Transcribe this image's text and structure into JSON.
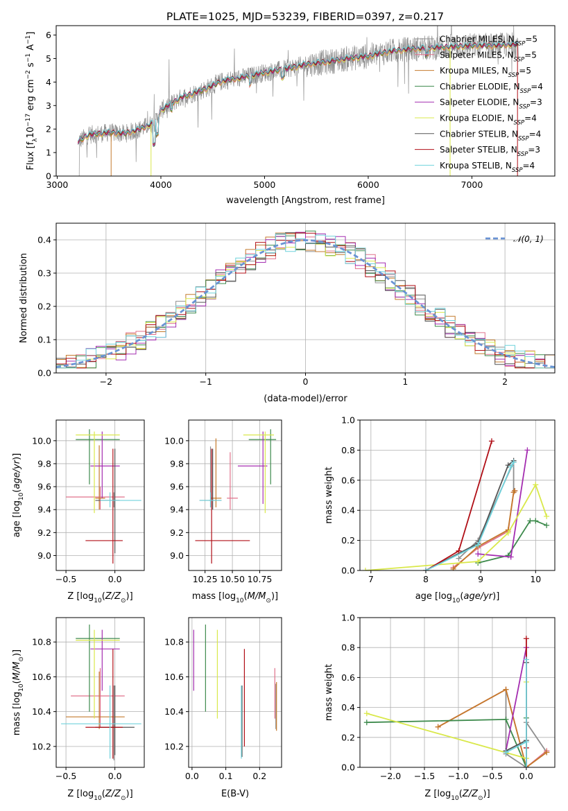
{
  "title": "PLATE=1025, MJD=53239, FIBERID=0397, z=0.217",
  "colors": {
    "Chabrier MILES": "#8f8f8f",
    "Salpeter MILES": "#e0708a",
    "Kroupa MILES": "#c47a2c",
    "Chabrier ELODIE": "#3d8a4c",
    "Salpeter ELODIE": "#a42db0",
    "Kroupa ELODIE": "#d9e84a",
    "Chabrier STELIB": "#555555",
    "Salpeter STELIB": "#b00e16",
    "Kroupa STELIB": "#6fd2dc",
    "gauss": "#6a93d4"
  },
  "legend_labels": [
    {
      "key": "Chabrier MILES",
      "name": "Chabrier MILES, N",
      "nssp": "5"
    },
    {
      "key": "Salpeter MILES",
      "name": "Salpeter MILES, N",
      "nssp": "5"
    },
    {
      "key": "Kroupa MILES",
      "name": "Kroupa MILES, N",
      "nssp": "5"
    },
    {
      "key": "Chabrier ELODIE",
      "name": "Chabrier ELODIE, N",
      "nssp": "4"
    },
    {
      "key": "Salpeter ELODIE",
      "name": "Salpeter ELODIE, N",
      "nssp": "3"
    },
    {
      "key": "Kroupa ELODIE",
      "name": "Kroupa ELODIE, N",
      "nssp": "4"
    },
    {
      "key": "Chabrier STELIB",
      "name": "Chabrier STELIB, N",
      "nssp": "4"
    },
    {
      "key": "Salpeter STELIB",
      "name": "Salpeter STELIB, N",
      "nssp": "3"
    },
    {
      "key": "Kroupa STELIB",
      "name": "Kroupa STELIB, N",
      "nssp": "4"
    }
  ],
  "nssp_subscript": "SSP",
  "chart_data": [
    {
      "id": "spectrum",
      "type": "line",
      "xlabel": "wavelength [Angstrom, rest frame]",
      "ylabel": "Flux [f_λ 10^-17 erg cm^-2 s^-1 A^-1]",
      "xlim": [
        2990,
        7800
      ],
      "ylim": [
        0,
        6.4
      ],
      "xticks": [
        3000,
        4000,
        5000,
        6000,
        7000
      ],
      "yticks": [
        0,
        1,
        2,
        3,
        4,
        5,
        6
      ],
      "continuum_x": [
        3200,
        3300,
        3500,
        3650,
        3800,
        3950,
        4000,
        4200,
        4400,
        4600,
        4800,
        5000,
        5200,
        5400,
        5600,
        5800,
        6000,
        6200,
        6400,
        6600,
        6800,
        7000,
        7200,
        7450
      ],
      "continuum_y": [
        1.45,
        1.75,
        1.85,
        1.8,
        2.0,
        2.3,
        2.8,
        3.35,
        3.65,
        4.05,
        4.2,
        4.4,
        4.55,
        4.75,
        4.85,
        5.0,
        5.1,
        5.3,
        5.4,
        5.45,
        5.5,
        5.55,
        5.55,
        5.6
      ],
      "data_xrange": [
        3200,
        7450
      ]
    },
    {
      "id": "residual_hist",
      "type": "bar",
      "xlabel": "(data-model)/error",
      "ylabel": "Normed distribution",
      "xlim": [
        -2.5,
        2.5
      ],
      "ylim": [
        0,
        0.45
      ],
      "xticks": [
        -2,
        -1,
        0,
        1,
        2
      ],
      "yticks": [
        0.0,
        0.1,
        0.2,
        0.3,
        0.4
      ],
      "bin_width": 0.1,
      "legend": "𝒩(0, 1)",
      "series_values": [
        0.03,
        0.035,
        0.04,
        0.045,
        0.055,
        0.065,
        0.07,
        0.075,
        0.08,
        0.09,
        0.1,
        0.11,
        0.12,
        0.14,
        0.15,
        0.17,
        0.19,
        0.2,
        0.22,
        0.23,
        0.24,
        0.25,
        0.26,
        0.27,
        0.28,
        0.29,
        0.3,
        0.31,
        0.32,
        0.33,
        0.34,
        0.35,
        0.36,
        0.37,
        0.37,
        0.38,
        0.39,
        0.39,
        0.4,
        0.4,
        0.4,
        0.4,
        0.4,
        0.39,
        0.39,
        0.38,
        0.37,
        0.36,
        0.35,
        0.34,
        0.33,
        0.32,
        0.31,
        0.29,
        0.28,
        0.27,
        0.25,
        0.24,
        0.22,
        0.21,
        0.2,
        0.18,
        0.17,
        0.16,
        0.15,
        0.13,
        0.12,
        0.11,
        0.1,
        0.09,
        0.08,
        0.07,
        0.06,
        0.055,
        0.05,
        0.045,
        0.04,
        0.035,
        0.03,
        0.03,
        0.03,
        0.03,
        0.03,
        0.03,
        0.03,
        0.03,
        0.03,
        0.03,
        0.03,
        0.03
      ]
    },
    {
      "id": "age_vs_Z",
      "type": "scatter",
      "xlabel": "Z [log10(Z/Z⊙)]",
      "ylabel": "age  [log10(age/yr)]",
      "xlim": [
        -0.6,
        0.3
      ],
      "ylim": [
        8.87,
        10.18
      ],
      "xticks": [
        -0.5,
        0.0
      ],
      "yticks": [
        9.0,
        9.2,
        9.4,
        9.6,
        9.8,
        10.0
      ],
      "points": [
        {
          "s": "Chabrier MILES",
          "x": -0.01,
          "xe": [
            -0.15,
            0.04
          ],
          "y": 9.48,
          "ye": [
            9.42,
            9.55
          ]
        },
        {
          "s": "Salpeter MILES",
          "x": -0.15,
          "xe": [
            -0.5,
            0.1
          ],
          "y": 9.51,
          "ye": [
            9.4,
            9.6
          ]
        },
        {
          "s": "Kroupa MILES",
          "x": -0.16,
          "xe": [
            -0.2,
            -0.1
          ],
          "y": 9.5,
          "ye": [
            9.4,
            9.96
          ]
        },
        {
          "s": "Chabrier ELODIE",
          "x": -0.26,
          "xe": [
            -0.4,
            0.05
          ],
          "y": 10.01,
          "ye": [
            9.62,
            10.1
          ]
        },
        {
          "s": "Salpeter ELODIE",
          "x": -0.13,
          "xe": [
            -0.25,
            0.05
          ],
          "y": 9.78,
          "ye": [
            9.5,
            10.08
          ]
        },
        {
          "s": "Kroupa ELODIE",
          "x": -0.21,
          "xe": [
            -0.4,
            0.05
          ],
          "y": 10.05,
          "ye": [
            9.37,
            10.08
          ]
        },
        {
          "s": "Chabrier STELIB",
          "x": 0.0,
          "xe": [
            -0.2,
            0.05
          ],
          "y": 9.48,
          "ye": [
            9.02,
            9.93
          ]
        },
        {
          "s": "Salpeter STELIB",
          "x": -0.02,
          "xe": [
            -0.3,
            0.08
          ],
          "y": 9.13,
          "ye": [
            8.93,
            9.93
          ]
        },
        {
          "s": "Kroupa STELIB",
          "x": -0.05,
          "xe": [
            -0.15,
            0.27
          ],
          "y": 9.48,
          "ye": [
            9.42,
            9.55
          ]
        }
      ]
    },
    {
      "id": "age_vs_mass",
      "type": "scatter",
      "xlabel": "mass [log10(M/M⊙)]",
      "ylabel": "",
      "xlim": [
        10.1,
        10.95
      ],
      "ylim": [
        8.87,
        10.18
      ],
      "xticks": [
        10.25,
        10.5,
        10.75
      ],
      "yticks": [
        9.0,
        9.2,
        9.4,
        9.6,
        9.8,
        10.0
      ],
      "points": [
        {
          "s": "Chabrier MILES",
          "x": 10.3,
          "xe": [
            10.29,
            10.31
          ],
          "y": 9.48,
          "ye": [
            9.42,
            9.95
          ]
        },
        {
          "s": "Salpeter MILES",
          "x": 10.48,
          "xe": [
            10.45,
            10.55
          ],
          "y": 9.5,
          "ye": [
            9.4,
            9.9
          ]
        },
        {
          "s": "Kroupa MILES",
          "x": 10.35,
          "xe": [
            10.3,
            10.4
          ],
          "y": 9.5,
          "ye": [
            9.42,
            10.02
          ]
        },
        {
          "s": "Chabrier ELODIE",
          "x": 10.85,
          "xe": [
            10.65,
            10.9
          ],
          "y": 10.01,
          "ye": [
            9.62,
            10.1
          ]
        },
        {
          "s": "Salpeter ELODIE",
          "x": 10.78,
          "xe": [
            10.55,
            10.82
          ],
          "y": 9.78,
          "ye": [
            9.45,
            10.08
          ]
        },
        {
          "s": "Kroupa ELODIE",
          "x": 10.8,
          "xe": [
            10.6,
            10.88
          ],
          "y": 10.05,
          "ye": [
            9.37,
            10.08
          ]
        },
        {
          "s": "Chabrier STELIB",
          "x": 10.32,
          "xe": [
            10.2,
            10.4
          ],
          "y": 9.48,
          "ye": [
            9.4,
            9.93
          ]
        },
        {
          "s": "Salpeter STELIB",
          "x": 10.31,
          "xe": [
            10.16,
            10.66
          ],
          "y": 9.13,
          "ye": [
            8.93,
            9.93
          ]
        },
        {
          "s": "Kroupa STELIB",
          "x": 10.3,
          "xe": [
            10.2,
            10.4
          ],
          "y": 9.48,
          "ye": [
            9.42,
            9.55
          ]
        }
      ]
    },
    {
      "id": "massweight_vs_age",
      "type": "line",
      "xlabel": "age  [log10(age/yr)]",
      "ylabel": "mass weight",
      "xlim": [
        6.8,
        10.35
      ],
      "ylim": [
        0,
        1
      ],
      "xticks": [
        7,
        8,
        9,
        10
      ],
      "yticks": [
        0.0,
        0.2,
        0.4,
        0.6,
        0.8,
        1.0
      ],
      "series": [
        {
          "s": "Chabrier MILES",
          "x": [
            8.6,
            8.95,
            9.6,
            9.6,
            9.62
          ],
          "y": [
            0.08,
            0.2,
            0.72,
            0.52,
            0.53
          ]
        },
        {
          "s": "Salpeter MILES",
          "x": [
            8.5,
            8.95,
            9.5,
            9.6,
            9.62
          ],
          "y": [
            0.02,
            0.15,
            0.26,
            0.52,
            0.53
          ]
        },
        {
          "s": "Kroupa MILES",
          "x": [
            8.5,
            8.95,
            9.5,
            9.6,
            9.62
          ],
          "y": [
            0.01,
            0.16,
            0.27,
            0.52,
            0.53
          ]
        },
        {
          "s": "Chabrier ELODIE",
          "x": [
            8.95,
            9.5,
            9.9,
            10.0,
            10.2
          ],
          "y": [
            0.05,
            0.1,
            0.33,
            0.33,
            0.3
          ]
        },
        {
          "s": "Salpeter ELODIE",
          "x": [
            8.95,
            9.55,
            9.85
          ],
          "y": [
            0.11,
            0.09,
            0.8
          ]
        },
        {
          "s": "Kroupa ELODIE",
          "x": [
            6.9,
            8.95,
            9.5,
            10.0,
            10.2
          ],
          "y": [
            0.0,
            0.06,
            0.25,
            0.57,
            0.36
          ]
        },
        {
          "s": "Chabrier STELIB",
          "x": [
            8.0,
            8.95,
            9.5,
            9.6
          ],
          "y": [
            0.0,
            0.18,
            0.7,
            0.73
          ]
        },
        {
          "s": "Salpeter STELIB",
          "x": [
            8.0,
            8.6,
            9.2
          ],
          "y": [
            0.0,
            0.13,
            0.86
          ]
        },
        {
          "s": "Kroupa STELIB",
          "x": [
            8.0,
            8.95,
            9.55,
            9.6
          ],
          "y": [
            0.0,
            0.17,
            0.69,
            0.72
          ]
        }
      ]
    },
    {
      "id": "mass_vs_Z",
      "type": "scatter",
      "xlabel": "Z [log10(Z/Z⊙)]",
      "ylabel": "mass [log10(M/M⊙)]",
      "xlim": [
        -0.6,
        0.3
      ],
      "ylim": [
        10.08,
        10.94
      ],
      "xticks": [
        -0.5,
        0.0
      ],
      "yticks": [
        10.2,
        10.4,
        10.6,
        10.8
      ],
      "points": [
        {
          "s": "Chabrier MILES",
          "x": -0.01,
          "xe": [
            -0.15,
            0.04
          ],
          "y": 10.31,
          "ye": [
            10.12,
            10.55
          ]
        },
        {
          "s": "Salpeter MILES",
          "x": -0.15,
          "xe": [
            -0.45,
            0.1
          ],
          "y": 10.49,
          "ye": [
            10.31,
            10.65
          ]
        },
        {
          "s": "Kroupa MILES",
          "x": -0.16,
          "xe": [
            -0.5,
            0.1
          ],
          "y": 10.37,
          "ye": [
            10.3,
            10.63
          ]
        },
        {
          "s": "Chabrier ELODIE",
          "x": -0.26,
          "xe": [
            -0.4,
            0.05
          ],
          "y": 10.82,
          "ye": [
            10.4,
            10.9
          ]
        },
        {
          "s": "Salpeter ELODIE",
          "x": -0.13,
          "xe": [
            -0.25,
            0.05
          ],
          "y": 10.76,
          "ye": [
            10.52,
            10.87
          ]
        },
        {
          "s": "Kroupa ELODIE",
          "x": -0.21,
          "xe": [
            -0.4,
            0.05
          ],
          "y": 10.81,
          "ye": [
            10.36,
            10.87
          ]
        },
        {
          "s": "Chabrier STELIB",
          "x": 0.0,
          "xe": [
            -0.2,
            0.2
          ],
          "y": 10.31,
          "ye": [
            10.15,
            10.55
          ]
        },
        {
          "s": "Salpeter STELIB",
          "x": -0.02,
          "xe": [
            -0.3,
            0.08
          ],
          "y": 10.31,
          "ye": [
            10.13,
            10.76
          ]
        },
        {
          "s": "Kroupa STELIB",
          "x": -0.05,
          "xe": [
            -0.55,
            0.27
          ],
          "y": 10.33,
          "ye": [
            10.13,
            10.55
          ]
        }
      ]
    },
    {
      "id": "mass_vs_EBV",
      "type": "scatter",
      "xlabel": "E(B-V)",
      "ylabel": "",
      "xlim": [
        -0.01,
        0.265
      ],
      "ylim": [
        10.08,
        10.94
      ],
      "xticks": [
        0.0,
        0.1,
        0.2
      ],
      "yticks": [
        10.2,
        10.4,
        10.6,
        10.8
      ],
      "points": [
        {
          "s": "Chabrier MILES",
          "x": 0.248,
          "ye": [
            10.3,
            10.56
          ]
        },
        {
          "s": "Salpeter MILES",
          "x": 0.245,
          "ye": [
            10.36,
            10.65
          ]
        },
        {
          "s": "Kroupa MILES",
          "x": 0.25,
          "ye": [
            10.29,
            10.57
          ]
        },
        {
          "s": "Chabrier ELODIE",
          "x": 0.04,
          "ye": [
            10.4,
            10.9
          ]
        },
        {
          "s": "Salpeter ELODIE",
          "x": 0.005,
          "ye": [
            10.52,
            10.87
          ]
        },
        {
          "s": "Kroupa ELODIE",
          "x": 0.075,
          "ye": [
            10.36,
            10.87
          ]
        },
        {
          "s": "Chabrier STELIB",
          "x": 0.148,
          "ye": [
            10.14,
            10.55
          ]
        },
        {
          "s": "Salpeter STELIB",
          "x": 0.155,
          "ye": [
            10.2,
            10.76
          ]
        },
        {
          "s": "Kroupa STELIB",
          "x": 0.146,
          "ye": [
            10.13,
            10.55
          ]
        }
      ]
    },
    {
      "id": "massweight_vs_Z",
      "type": "line",
      "xlabel": "Z [log10(Z/Z⊙)]",
      "ylabel": "mass weight",
      "xlim": [
        -2.45,
        0.42
      ],
      "ylim": [
        0,
        1
      ],
      "xticks": [
        -2.0,
        -1.5,
        -1.0,
        -0.5,
        0.0
      ],
      "yticks": [
        0.0,
        0.2,
        0.4,
        0.6,
        0.8,
        1.0
      ],
      "series": [
        {
          "s": "Chabrier MILES",
          "x": [
            -0.3,
            -0.3,
            0.0,
            0.0,
            0.3
          ],
          "y": [
            0.52,
            0.09,
            0.0,
            0.3,
            0.1
          ]
        },
        {
          "s": "Salpeter MILES",
          "x": [
            -1.3,
            -0.3,
            0.0,
            0.3
          ],
          "y": [
            0.27,
            0.52,
            0.0,
            0.11
          ]
        },
        {
          "s": "Kroupa MILES",
          "x": [
            -1.3,
            -0.3,
            0.0,
            0.3
          ],
          "y": [
            0.27,
            0.52,
            0.0,
            0.1
          ]
        },
        {
          "s": "Chabrier ELODIE",
          "x": [
            -2.35,
            -0.3,
            0.0,
            0.0
          ],
          "y": [
            0.3,
            0.32,
            0.0,
            0.33
          ]
        },
        {
          "s": "Salpeter ELODIE",
          "x": [
            -0.3,
            0.0,
            0.0
          ],
          "y": [
            0.11,
            0.8,
            0.0
          ]
        },
        {
          "s": "Kroupa ELODIE",
          "x": [
            -2.35,
            0.0,
            0.0
          ],
          "y": [
            0.36,
            0.06,
            0.57
          ]
        },
        {
          "s": "Chabrier STELIB",
          "x": [
            -0.3,
            0.0,
            0.0,
            0.0
          ],
          "y": [
            0.11,
            0.18,
            0.7,
            0.0
          ]
        },
        {
          "s": "Salpeter STELIB",
          "x": [
            0.0,
            0.0,
            0.0
          ],
          "y": [
            0.86,
            0.13,
            0.0
          ]
        },
        {
          "s": "Kroupa STELIB",
          "x": [
            -0.3,
            0.0,
            0.0,
            0.0
          ],
          "y": [
            0.1,
            0.17,
            0.72,
            0.0
          ]
        }
      ]
    }
  ]
}
